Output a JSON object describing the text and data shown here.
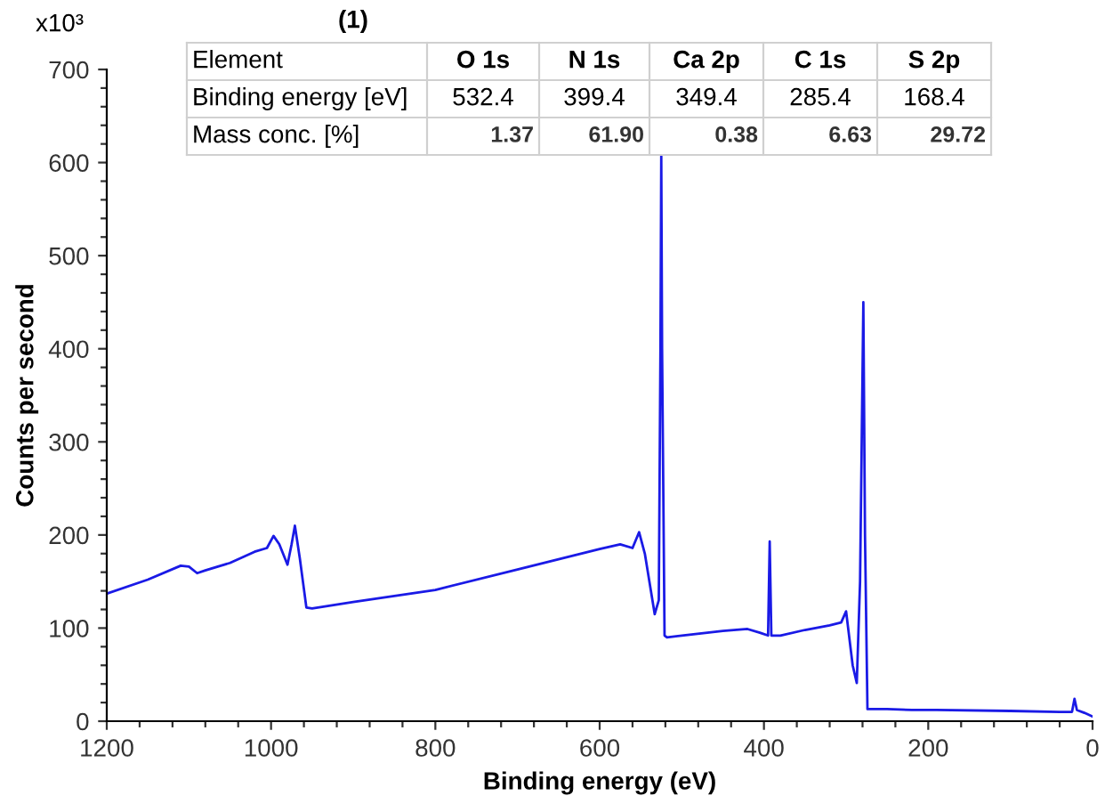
{
  "chart_data": {
    "type": "line",
    "title": "(1)",
    "xlabel": "Binding energy (eV)",
    "ylabel": "Counts per second",
    "annotations": [
      "x10³",
      "Element",
      "O 1s",
      "N 1s",
      "Ca 2p",
      "C 1s",
      "S 2p",
      "Binding energy [eV]",
      "532.4",
      "399.4",
      "349.4",
      "285.4",
      "168.4",
      "Mass conc. [%]",
      "1.37",
      "61.90",
      "0.38",
      "6.63",
      "29.72"
    ],
    "xlim": [
      1200,
      0
    ],
    "xticks": [
      1200,
      {
        "value": 1160,
        "label": null
      },
      {
        "value": 1120,
        "label": null
      },
      {
        "value": 1080,
        "label": null
      },
      {
        "value": 1040,
        "label": null
      },
      1000,
      {
        "value": 960,
        "label": null
      },
      {
        "value": 920,
        "label": null
      },
      {
        "value": 880,
        "label": null
      },
      {
        "value": 840,
        "label": null
      },
      800,
      {
        "value": 760,
        "label": null
      },
      {
        "value": 720,
        "label": null
      },
      {
        "value": 680,
        "label": null
      },
      {
        "value": 640,
        "label": null
      },
      600,
      {
        "value": 560,
        "label": null
      },
      {
        "value": 520,
        "label": null
      },
      {
        "value": 480,
        "label": null
      },
      {
        "value": 440,
        "label": null
      },
      400,
      {
        "value": 360,
        "label": null
      },
      {
        "value": 320,
        "label": null
      },
      {
        "value": 280,
        "label": null
      },
      {
        "value": 240,
        "label": null
      },
      200,
      {
        "value": 160,
        "label": null
      },
      {
        "value": 120,
        "label": null
      },
      {
        "value": 80,
        "label": null
      },
      {
        "value": 40,
        "label": null
      },
      0
    ],
    "ylim": [
      0,
      700
    ],
    "yticks": [
      0,
      {
        "value": 20,
        "label": null
      },
      {
        "value": 40,
        "label": null
      },
      {
        "value": 60,
        "label": null
      },
      {
        "value": 80,
        "label": null
      },
      100,
      {
        "value": 120,
        "label": null
      },
      {
        "value": 140,
        "label": null
      },
      {
        "value": 160,
        "label": null
      },
      {
        "value": 180,
        "label": null
      },
      200,
      {
        "value": 220,
        "label": null
      },
      {
        "value": 240,
        "label": null
      },
      {
        "value": 260,
        "label": null
      },
      {
        "value": 280,
        "label": null
      },
      300,
      {
        "value": 320,
        "label": null
      },
      {
        "value": 340,
        "label": null
      },
      {
        "value": 360,
        "label": null
      },
      {
        "value": 380,
        "label": null
      },
      400,
      {
        "value": 420,
        "label": null
      },
      {
        "value": 440,
        "label": null
      },
      {
        "value": 460,
        "label": null
      },
      {
        "value": 480,
        "label": null
      },
      500,
      {
        "value": 520,
        "label": null
      },
      {
        "value": 540,
        "label": null
      },
      {
        "value": 560,
        "label": null
      },
      {
        "value": 580,
        "label": null
      },
      600,
      {
        "value": 620,
        "label": null
      },
      {
        "value": 640,
        "label": null
      },
      {
        "value": 660,
        "label": null
      },
      {
        "value": 680,
        "label": null
      },
      700
    ],
    "grid": false,
    "marker": "none",
    "line_style": "solid",
    "series": [
      {
        "color": "#1a1ae6",
        "x": [
          1200,
          1150,
          1110,
          1100,
          1090,
          1080,
          1050,
          1020,
          1005,
          997,
          990,
          980,
          975,
          971,
          965,
          957,
          950,
          900,
          800,
          700,
          600,
          575,
          560,
          552,
          545,
          533,
          528,
          526,
          525,
          524,
          521,
          518,
          500,
          450,
          420,
          405,
          395,
          393,
          391,
          380,
          350,
          320,
          306,
          300,
          292,
          287,
          283,
          279,
          277,
          274,
          250,
          220,
          190,
          100,
          40,
          25,
          22,
          19,
          10,
          0
        ],
        "values": [
          137,
          152,
          167,
          166,
          159,
          162,
          170,
          182,
          186,
          199,
          190,
          168,
          190,
          210,
          175,
          122,
          121,
          128,
          141,
          163,
          185,
          190,
          186,
          203,
          180,
          115,
          130,
          400,
          607,
          400,
          92,
          90,
          92,
          97,
          99,
          95,
          92,
          193,
          92,
          92,
          98,
          103,
          106,
          118,
          60,
          41,
          150,
          450,
          200,
          13,
          13,
          12,
          12,
          11,
          10,
          10,
          24,
          12,
          9,
          5
        ]
      }
    ]
  }
}
